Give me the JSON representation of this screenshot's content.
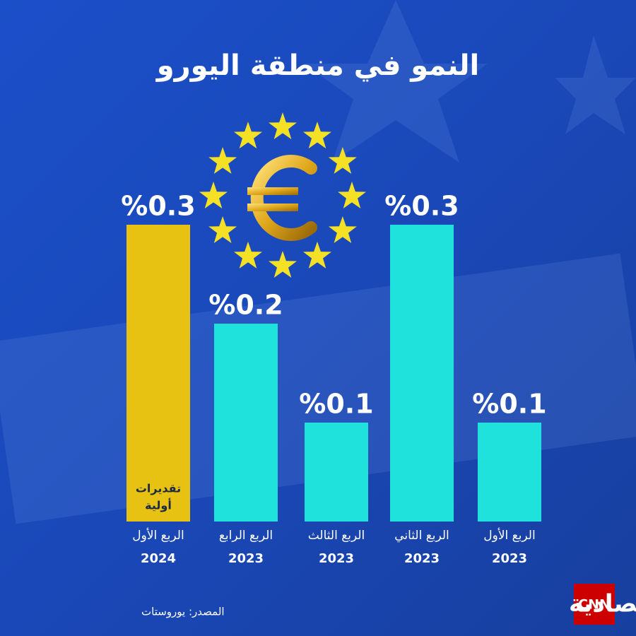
{
  "chart_data": {
    "type": "bar",
    "title": "النمو في منطقة اليورو",
    "categories": [
      [
        "الربع الأول",
        "2024"
      ],
      [
        "الربع الرابع",
        "2023"
      ],
      [
        "الربع الثالث",
        "2023"
      ],
      [
        "الربع الثاني",
        "2023"
      ],
      [
        "الربع الأول",
        "2023"
      ]
    ],
    "values": [
      0.3,
      0.2,
      0.1,
      0.3,
      0.1
    ],
    "value_labels": [
      "%0.3",
      "%0.2",
      "%0.1",
      "%0.3",
      "%0.1"
    ],
    "colors": [
      "#e8c213",
      "#1fe2dc",
      "#1fe2dc",
      "#1fe2dc",
      "#1fe2dc"
    ],
    "annotation": [
      "تقديرات",
      "أولية"
    ],
    "source": "المصدر: يوروستات"
  },
  "branding": {
    "cnn": "CNN",
    "name": "الاقتصادية"
  }
}
